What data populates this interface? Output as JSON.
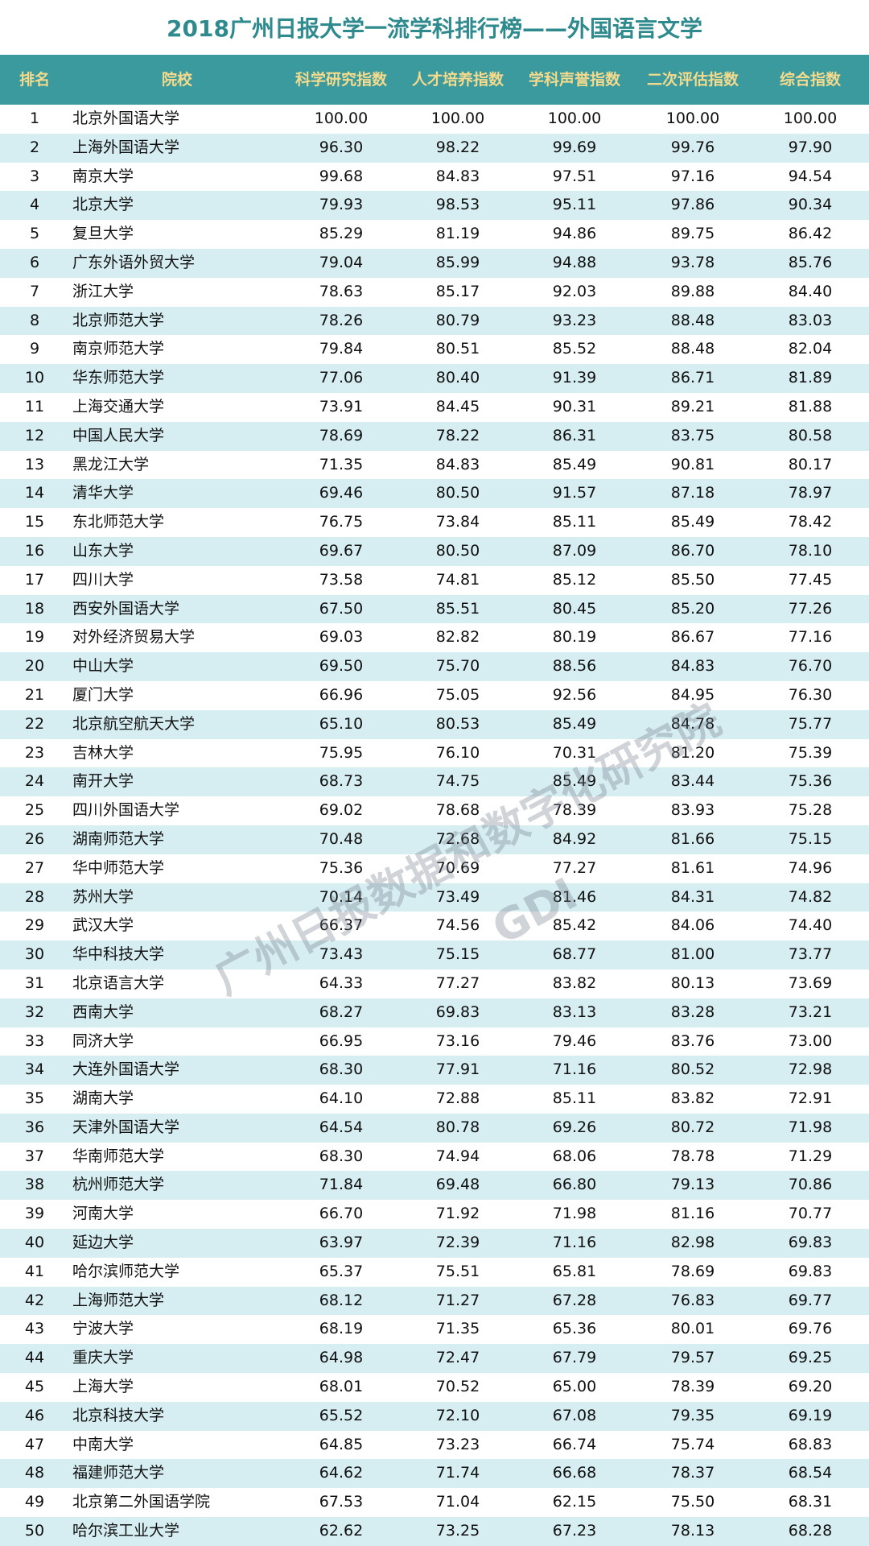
{
  "title": "2018广州日报大学一流学科排行榜——外国语言文学",
  "headers": [
    "排名",
    "院校",
    "科学研究指数",
    "人才培养指数",
    "学科声誉指数",
    "二次评估指数",
    "综合指数"
  ],
  "colors": {
    "header_bg": "#3a9a9e",
    "header_text": "#f3da8c",
    "title": "#2f8a8e",
    "stripe": "#d6edf1"
  },
  "watermark": {
    "text": "广州日报数据和数字化研究院",
    "logo": "GDI"
  },
  "rows": [
    [
      "1",
      "北京外国语大学",
      "100.00",
      "100.00",
      "100.00",
      "100.00",
      "100.00"
    ],
    [
      "2",
      "上海外国语大学",
      "96.30",
      "98.22",
      "99.69",
      "99.76",
      "97.90"
    ],
    [
      "3",
      "南京大学",
      "99.68",
      "84.83",
      "97.51",
      "97.16",
      "94.54"
    ],
    [
      "4",
      "北京大学",
      "79.93",
      "98.53",
      "95.11",
      "97.86",
      "90.34"
    ],
    [
      "5",
      "复旦大学",
      "85.29",
      "81.19",
      "94.86",
      "89.75",
      "86.42"
    ],
    [
      "6",
      "广东外语外贸大学",
      "79.04",
      "85.99",
      "94.88",
      "93.78",
      "85.76"
    ],
    [
      "7",
      "浙江大学",
      "78.63",
      "85.17",
      "92.03",
      "89.88",
      "84.40"
    ],
    [
      "8",
      "北京师范大学",
      "78.26",
      "80.79",
      "93.23",
      "88.48",
      "83.03"
    ],
    [
      "9",
      "南京师范大学",
      "79.84",
      "80.51",
      "85.52",
      "88.48",
      "82.04"
    ],
    [
      "10",
      "华东师范大学",
      "77.06",
      "80.40",
      "91.39",
      "86.71",
      "81.89"
    ],
    [
      "11",
      "上海交通大学",
      "73.91",
      "84.45",
      "90.31",
      "89.21",
      "81.88"
    ],
    [
      "12",
      "中国人民大学",
      "78.69",
      "78.22",
      "86.31",
      "83.75",
      "80.58"
    ],
    [
      "13",
      "黑龙江大学",
      "71.35",
      "84.83",
      "85.49",
      "90.81",
      "80.17"
    ],
    [
      "14",
      "清华大学",
      "69.46",
      "80.50",
      "91.57",
      "87.18",
      "78.97"
    ],
    [
      "15",
      "东北师范大学",
      "76.75",
      "73.84",
      "85.11",
      "85.49",
      "78.42"
    ],
    [
      "16",
      "山东大学",
      "69.67",
      "80.50",
      "87.09",
      "86.70",
      "78.10"
    ],
    [
      "17",
      "四川大学",
      "73.58",
      "74.81",
      "85.12",
      "85.50",
      "77.45"
    ],
    [
      "18",
      "西安外国语大学",
      "67.50",
      "85.51",
      "80.45",
      "85.20",
      "77.26"
    ],
    [
      "19",
      "对外经济贸易大学",
      "69.03",
      "82.82",
      "80.19",
      "86.67",
      "77.16"
    ],
    [
      "20",
      "中山大学",
      "69.50",
      "75.70",
      "88.56",
      "84.83",
      "76.70"
    ],
    [
      "21",
      "厦门大学",
      "66.96",
      "75.05",
      "92.56",
      "84.95",
      "76.30"
    ],
    [
      "22",
      "北京航空航天大学",
      "65.10",
      "80.53",
      "85.49",
      "84.78",
      "75.77"
    ],
    [
      "23",
      "吉林大学",
      "75.95",
      "76.10",
      "70.31",
      "81.20",
      "75.39"
    ],
    [
      "24",
      "南开大学",
      "68.73",
      "74.75",
      "85.49",
      "83.44",
      "75.36"
    ],
    [
      "25",
      "四川外国语大学",
      "69.02",
      "78.68",
      "78.39",
      "83.93",
      "75.28"
    ],
    [
      "26",
      "湖南师范大学",
      "70.48",
      "72.68",
      "84.92",
      "81.66",
      "75.15"
    ],
    [
      "27",
      "华中师范大学",
      "75.36",
      "70.69",
      "77.27",
      "81.61",
      "74.96"
    ],
    [
      "28",
      "苏州大学",
      "70.14",
      "73.49",
      "81.46",
      "84.31",
      "74.82"
    ],
    [
      "29",
      "武汉大学",
      "66.37",
      "74.56",
      "85.42",
      "84.06",
      "74.40"
    ],
    [
      "30",
      "华中科技大学",
      "73.43",
      "75.15",
      "68.77",
      "81.00",
      "73.77"
    ],
    [
      "31",
      "北京语言大学",
      "64.33",
      "77.27",
      "83.82",
      "80.13",
      "73.69"
    ],
    [
      "32",
      "西南大学",
      "68.27",
      "69.83",
      "83.13",
      "83.28",
      "73.21"
    ],
    [
      "33",
      "同济大学",
      "66.95",
      "73.16",
      "79.46",
      "83.76",
      "73.00"
    ],
    [
      "34",
      "大连外国语大学",
      "68.30",
      "77.91",
      "71.16",
      "80.52",
      "72.98"
    ],
    [
      "35",
      "湖南大学",
      "64.10",
      "72.88",
      "85.11",
      "83.82",
      "72.91"
    ],
    [
      "36",
      "天津外国语大学",
      "64.54",
      "80.78",
      "69.26",
      "80.72",
      "71.98"
    ],
    [
      "37",
      "华南师范大学",
      "68.30",
      "74.94",
      "68.06",
      "78.78",
      "71.29"
    ],
    [
      "38",
      "杭州师范大学",
      "71.84",
      "69.48",
      "66.80",
      "79.13",
      "70.86"
    ],
    [
      "39",
      "河南大学",
      "66.70",
      "71.92",
      "71.98",
      "81.16",
      "70.77"
    ],
    [
      "40",
      "延边大学",
      "63.97",
      "72.39",
      "71.16",
      "82.98",
      "69.83"
    ],
    [
      "41",
      "哈尔滨师范大学",
      "65.37",
      "75.51",
      "65.81",
      "78.69",
      "69.83"
    ],
    [
      "42",
      "上海师范大学",
      "68.12",
      "71.27",
      "67.28",
      "76.83",
      "69.77"
    ],
    [
      "43",
      "宁波大学",
      "68.19",
      "71.35",
      "65.36",
      "80.01",
      "69.76"
    ],
    [
      "44",
      "重庆大学",
      "64.98",
      "72.47",
      "67.79",
      "79.57",
      "69.25"
    ],
    [
      "45",
      "上海大学",
      "68.01",
      "70.52",
      "65.00",
      "78.39",
      "69.20"
    ],
    [
      "46",
      "北京科技大学",
      "65.52",
      "72.10",
      "67.08",
      "79.35",
      "69.19"
    ],
    [
      "47",
      "中南大学",
      "64.85",
      "73.23",
      "66.74",
      "75.74",
      "68.83"
    ],
    [
      "48",
      "福建师范大学",
      "64.62",
      "71.74",
      "66.68",
      "78.37",
      "68.54"
    ],
    [
      "49",
      "北京第二外国语学院",
      "67.53",
      "71.04",
      "62.15",
      "75.50",
      "68.31"
    ],
    [
      "50",
      "哈尔滨工业大学",
      "62.62",
      "73.25",
      "67.23",
      "78.13",
      "68.28"
    ]
  ]
}
